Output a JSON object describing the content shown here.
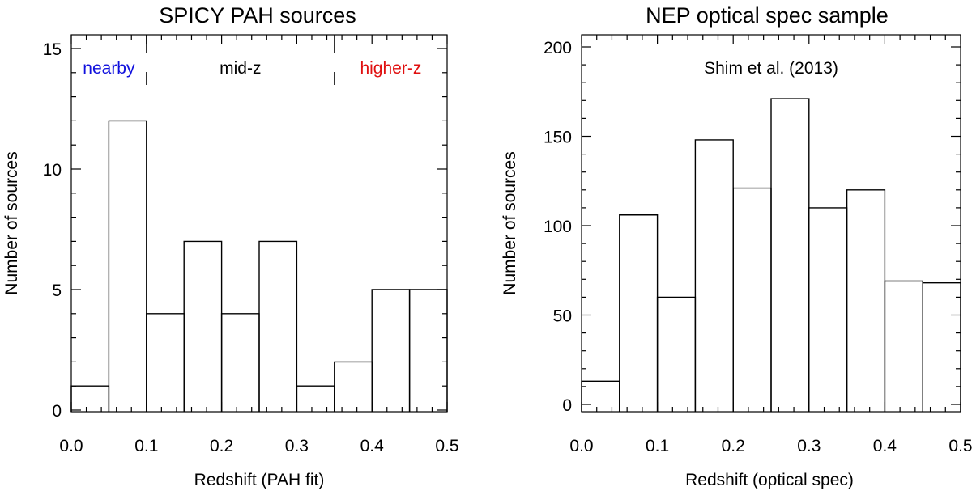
{
  "chart_data": [
    {
      "type": "bar",
      "title": "SPICY PAH sources",
      "xlabel": "Redshift (PAH fit)",
      "ylabel": "Number of sources",
      "xlim": [
        0.0,
        0.5
      ],
      "ylim": [
        0,
        15
      ],
      "bin_edges": [
        0.0,
        0.05,
        0.1,
        0.15,
        0.2,
        0.25,
        0.3,
        0.35,
        0.4,
        0.45,
        0.5
      ],
      "values": [
        1,
        12,
        4,
        7,
        4,
        7,
        1,
        2,
        5,
        5
      ],
      "xticks": [
        "0.0",
        "0.1",
        "0.2",
        "0.3",
        "0.4",
        "0.5"
      ],
      "yticks": [
        "0",
        "5",
        "10",
        "15"
      ],
      "dividers": [
        0.1,
        0.35
      ],
      "annotations": [
        {
          "text": "nearby",
          "x": 0.05,
          "color": "#1010dd"
        },
        {
          "text": "mid-z",
          "x": 0.225,
          "color": "#000000"
        },
        {
          "text": "higher-z",
          "x": 0.425,
          "color": "#e01010"
        }
      ]
    },
    {
      "type": "bar",
      "title": "NEP optical spec sample",
      "xlabel": "Redshift (optical spec)",
      "ylabel": "Number of sources",
      "xlim": [
        0.0,
        0.5
      ],
      "ylim": [
        0,
        200
      ],
      "bin_edges": [
        0.0,
        0.05,
        0.1,
        0.15,
        0.2,
        0.25,
        0.3,
        0.35,
        0.4,
        0.45,
        0.5
      ],
      "values": [
        13,
        106,
        60,
        148,
        121,
        171,
        110,
        120,
        69,
        68
      ],
      "xticks": [
        "0.0",
        "0.1",
        "0.2",
        "0.3",
        "0.4",
        "0.5"
      ],
      "yticks": [
        "0",
        "50",
        "100",
        "150",
        "200"
      ],
      "annotations": [
        {
          "text": "Shim et al. (2013)",
          "x": 0.25,
          "color": "#000000"
        }
      ]
    }
  ]
}
